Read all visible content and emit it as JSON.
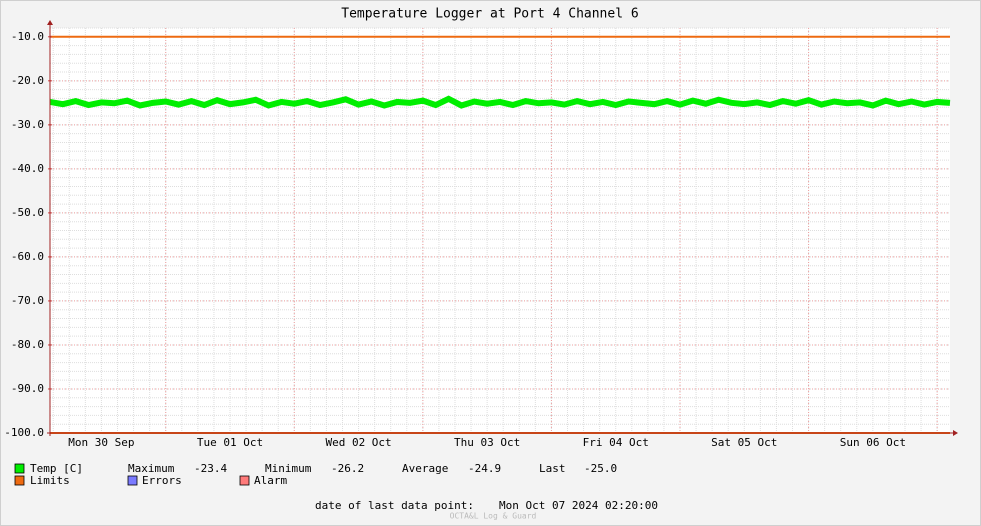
{
  "chart_data": {
    "type": "line",
    "title": "Temperature Logger at Port 4 Channel 6",
    "xlim": [
      0.1,
      7.1
    ],
    "xticks": [
      {
        "value": 0.5,
        "label": "Mon 30 Sep"
      },
      {
        "value": 1.5,
        "label": "Tue 01 Oct"
      },
      {
        "value": 2.5,
        "label": "Wed 02 Oct"
      },
      {
        "value": 3.5,
        "label": "Thu 03 Oct"
      },
      {
        "value": 4.5,
        "label": "Fri 04 Oct"
      },
      {
        "value": 5.5,
        "label": "Sat 05 Oct"
      },
      {
        "value": 6.5,
        "label": "Sun 06 Oct"
      }
    ],
    "ylim": [
      -100,
      -8
    ],
    "yticks": [
      {
        "value": -10,
        "label": "-10.0"
      },
      {
        "value": -20,
        "label": "-20.0"
      },
      {
        "value": -30,
        "label": "-30.0"
      },
      {
        "value": -40,
        "label": "-40.0"
      },
      {
        "value": -50,
        "label": "-50.0"
      },
      {
        "value": -60,
        "label": "-60.0"
      },
      {
        "value": -70,
        "label": "-70.0"
      },
      {
        "value": -80,
        "label": "-80.0"
      },
      {
        "value": -90,
        "label": "-90.0"
      },
      {
        "value": -100,
        "label": "-100.0"
      }
    ],
    "grid": true,
    "series": [
      {
        "name": "Temp [C]",
        "color": "#00ee00",
        "x": [
          0.1,
          0.2,
          0.3,
          0.4,
          0.5,
          0.6,
          0.7,
          0.8,
          0.9,
          1.0,
          1.1,
          1.2,
          1.3,
          1.4,
          1.5,
          1.6,
          1.7,
          1.8,
          1.9,
          2.0,
          2.1,
          2.2,
          2.3,
          2.4,
          2.5,
          2.6,
          2.7,
          2.8,
          2.9,
          3.0,
          3.1,
          3.2,
          3.3,
          3.4,
          3.5,
          3.6,
          3.7,
          3.8,
          3.9,
          4.0,
          4.1,
          4.2,
          4.3,
          4.4,
          4.5,
          4.6,
          4.7,
          4.8,
          4.9,
          5.0,
          5.1,
          5.2,
          5.3,
          5.4,
          5.5,
          5.6,
          5.7,
          5.8,
          5.9,
          6.0,
          6.1,
          6.2,
          6.3,
          6.4,
          6.5,
          6.6,
          6.7,
          6.8,
          6.9,
          7.0,
          7.1
        ],
        "values": [
          -24.8,
          -25.3,
          -24.6,
          -25.5,
          -24.9,
          -25.1,
          -24.5,
          -25.6,
          -25.0,
          -24.7,
          -25.4,
          -24.6,
          -25.5,
          -24.4,
          -25.3,
          -24.9,
          -24.3,
          -25.6,
          -24.8,
          -25.2,
          -24.6,
          -25.5,
          -24.9,
          -24.2,
          -25.4,
          -24.7,
          -25.6,
          -24.8,
          -25.0,
          -24.5,
          -25.5,
          -24.1,
          -25.6,
          -24.7,
          -25.2,
          -24.8,
          -25.5,
          -24.6,
          -25.1,
          -24.9,
          -25.4,
          -24.6,
          -25.3,
          -24.8,
          -25.5,
          -24.7,
          -25.0,
          -25.3,
          -24.6,
          -25.4,
          -24.5,
          -25.2,
          -24.3,
          -25.0,
          -25.3,
          -24.9,
          -25.5,
          -24.6,
          -25.2,
          -24.4,
          -25.4,
          -24.7,
          -25.1,
          -24.9,
          -25.6,
          -24.5,
          -25.3,
          -24.7,
          -25.4,
          -24.8,
          -25.0
        ]
      },
      {
        "name": "Limits",
        "color": "#ee6a10",
        "values": [
          -10,
          -100
        ]
      }
    ],
    "legend_extra": [
      {
        "name": "Errors",
        "color": "#7a7aff"
      },
      {
        "name": "Alarm",
        "color": "#ff7a7a"
      }
    ],
    "stats": {
      "labels": [
        "Maximum",
        "Minimum",
        "Average",
        "Last"
      ],
      "values": [
        -23.4,
        -26.2,
        -24.9,
        -25.0
      ],
      "value_labels": [
        "-23.4",
        "-26.2",
        "-24.9",
        "-25.0"
      ]
    },
    "last_data_label": "date of last data point:",
    "last_data": "Mon Oct 07 2024 02:20:00",
    "watermark": "OCTA&L Log & Guard"
  }
}
